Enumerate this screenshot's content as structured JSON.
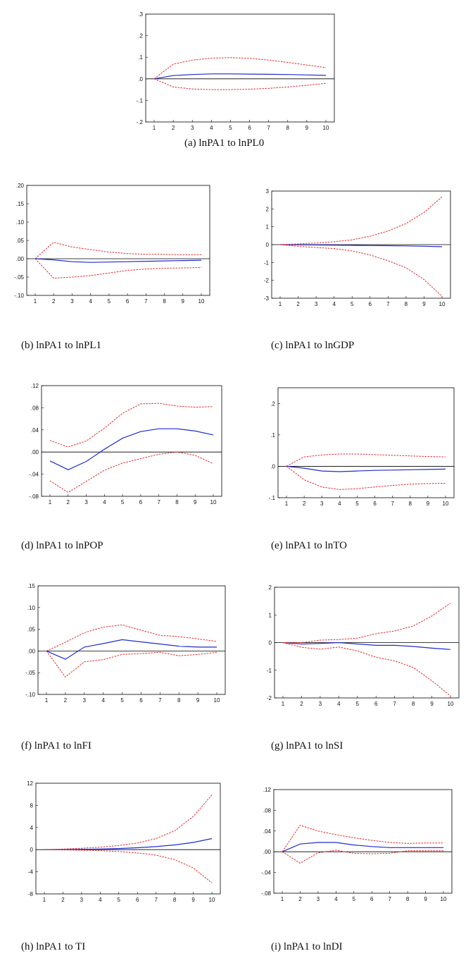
{
  "colors": {
    "response": "#1f2ccc",
    "band": "#e02a2a",
    "zero_line": "#000000",
    "frame": "#000000"
  },
  "chart_data": [
    {
      "id": "a",
      "type": "line",
      "caption": "(a) lnPA1 to lnPL0",
      "x": [
        1,
        2,
        3,
        4,
        5,
        6,
        7,
        8,
        9,
        10
      ],
      "ylim": [
        -0.2,
        0.3
      ],
      "yticks": [
        -0.2,
        -0.1,
        0.0,
        0.1,
        0.2,
        0.3
      ],
      "ytick_labels": [
        "-.2",
        "-.1",
        ".0",
        ".1",
        ".2",
        ".3"
      ],
      "series": [
        {
          "name": "response",
          "values": [
            0,
            0.015,
            0.02,
            0.023,
            0.023,
            0.022,
            0.021,
            0.02,
            0.018,
            0.016
          ]
        },
        {
          "name": "upper",
          "values": [
            0,
            0.068,
            0.087,
            0.096,
            0.098,
            0.095,
            0.087,
            0.076,
            0.064,
            0.052
          ]
        },
        {
          "name": "lower",
          "values": [
            0,
            -0.038,
            -0.047,
            -0.05,
            -0.05,
            -0.048,
            -0.044,
            -0.038,
            -0.03,
            -0.021
          ]
        }
      ]
    },
    {
      "id": "b",
      "type": "line",
      "caption": "(b) lnPA1 to lnPL1",
      "x": [
        1,
        2,
        3,
        4,
        5,
        6,
        7,
        8,
        9,
        10
      ],
      "ylim": [
        -0.1,
        0.2
      ],
      "yticks": [
        -0.1,
        -0.05,
        0.0,
        0.05,
        0.1,
        0.15,
        0.2
      ],
      "ytick_labels": [
        "-.10",
        "-.05",
        ".00",
        ".05",
        ".10",
        ".15",
        ".20"
      ],
      "series": [
        {
          "name": "response",
          "values": [
            0,
            -0.003,
            -0.008,
            -0.01,
            -0.009,
            -0.008,
            -0.007,
            -0.006,
            -0.005,
            -0.004
          ]
        },
        {
          "name": "upper",
          "values": [
            0,
            0.045,
            0.032,
            0.025,
            0.018,
            0.014,
            0.012,
            0.012,
            0.011,
            0.011
          ]
        },
        {
          "name": "lower",
          "values": [
            0,
            -0.053,
            -0.05,
            -0.046,
            -0.039,
            -0.032,
            -0.028,
            -0.026,
            -0.025,
            -0.024
          ]
        }
      ]
    },
    {
      "id": "c",
      "type": "line",
      "caption": "(c) lnPA1 to lnGDP",
      "x": [
        1,
        2,
        3,
        4,
        5,
        6,
        7,
        8,
        9,
        10
      ],
      "ylim": [
        -3,
        3
      ],
      "yticks": [
        -3,
        -2,
        -1,
        0,
        1,
        2,
        3
      ],
      "ytick_labels": [
        "-3",
        "-2",
        "-1",
        "0",
        "1",
        "2",
        "3"
      ],
      "series": [
        {
          "name": "response",
          "values": [
            0,
            -0.01,
            -0.02,
            -0.03,
            -0.04,
            -0.05,
            -0.06,
            -0.07,
            -0.09,
            -0.12
          ]
        },
        {
          "name": "upper",
          "values": [
            0,
            0.04,
            0.09,
            0.16,
            0.27,
            0.47,
            0.76,
            1.18,
            1.8,
            2.68
          ]
        },
        {
          "name": "lower",
          "values": [
            0,
            -0.1,
            -0.16,
            -0.22,
            -0.35,
            -0.58,
            -0.9,
            -1.3,
            -1.95,
            -2.9
          ]
        }
      ]
    },
    {
      "id": "d",
      "type": "line",
      "caption": "(d) lnPA1 to lnPOP",
      "x": [
        1,
        2,
        3,
        4,
        5,
        6,
        7,
        8,
        9,
        10
      ],
      "ylim": [
        -0.08,
        0.12
      ],
      "yticks": [
        -0.08,
        -0.04,
        0.0,
        0.04,
        0.08,
        0.12
      ],
      "ytick_labels": [
        "-.08",
        "-.04",
        ".00",
        ".04",
        ".08",
        ".12"
      ],
      "series": [
        {
          "name": "response",
          "values": [
            -0.016,
            -0.032,
            -0.017,
            0.005,
            0.025,
            0.037,
            0.042,
            0.042,
            0.038,
            0.031
          ]
        },
        {
          "name": "upper",
          "values": [
            0.021,
            0.009,
            0.02,
            0.043,
            0.07,
            0.087,
            0.088,
            0.083,
            0.081,
            0.082
          ]
        },
        {
          "name": "lower",
          "values": [
            -0.052,
            -0.073,
            -0.053,
            -0.033,
            -0.02,
            -0.012,
            -0.004,
            0.0,
            -0.006,
            -0.021
          ]
        }
      ]
    },
    {
      "id": "e",
      "type": "line",
      "caption": "(e) lnPA1 to lnTO",
      "x": [
        1,
        2,
        3,
        4,
        5,
        6,
        7,
        8,
        9,
        10
      ],
      "ylim": [
        -0.1,
        0.25
      ],
      "yticks": [
        -0.1,
        0.0,
        0.1,
        0.2
      ],
      "ytick_labels": [
        "-.1",
        ".0",
        ".1",
        ".2"
      ],
      "series": [
        {
          "name": "response",
          "values": [
            0,
            -0.006,
            -0.015,
            -0.017,
            -0.015,
            -0.013,
            -0.012,
            -0.011,
            -0.01,
            -0.009
          ]
        },
        {
          "name": "upper",
          "values": [
            0,
            0.03,
            0.036,
            0.039,
            0.039,
            0.037,
            0.035,
            0.033,
            0.031,
            0.03
          ]
        },
        {
          "name": "lower",
          "values": [
            0,
            -0.043,
            -0.066,
            -0.074,
            -0.071,
            -0.066,
            -0.061,
            -0.057,
            -0.055,
            -0.054
          ]
        }
      ]
    },
    {
      "id": "f",
      "type": "line",
      "caption": "(f) lnPA1 to lnFI",
      "x": [
        1,
        2,
        3,
        4,
        5,
        6,
        7,
        8,
        9,
        10
      ],
      "ylim": [
        -0.1,
        0.15
      ],
      "yticks": [
        -0.1,
        -0.05,
        0.0,
        0.05,
        0.1,
        0.15
      ],
      "ytick_labels": [
        "-.10",
        "-.05",
        ".00",
        ".05",
        ".10",
        ".15"
      ],
      "series": [
        {
          "name": "response",
          "values": [
            0,
            -0.019,
            0.009,
            0.017,
            0.026,
            0.021,
            0.016,
            0.011,
            0.009,
            0.009
          ]
        },
        {
          "name": "upper",
          "values": [
            0,
            0.02,
            0.042,
            0.055,
            0.06,
            0.048,
            0.036,
            0.033,
            0.028,
            0.022
          ]
        },
        {
          "name": "lower",
          "values": [
            0,
            -0.06,
            -0.025,
            -0.02,
            -0.008,
            -0.006,
            -0.003,
            -0.011,
            -0.008,
            -0.003
          ]
        }
      ]
    },
    {
      "id": "g",
      "type": "line",
      "caption": "(g) lnPA1 to lnSI",
      "x": [
        1,
        2,
        3,
        4,
        5,
        6,
        7,
        8,
        9,
        10
      ],
      "ylim": [
        -2,
        2
      ],
      "yticks": [
        -2,
        -1,
        0,
        1,
        2
      ],
      "ytick_labels": [
        "-2",
        "-1",
        "0",
        "1",
        "2"
      ],
      "series": [
        {
          "name": "response",
          "values": [
            0,
            -0.05,
            -0.03,
            0.0,
            -0.05,
            -0.1,
            -0.1,
            -0.14,
            -0.2,
            -0.25
          ]
        },
        {
          "name": "upper",
          "values": [
            0,
            0.0,
            0.09,
            0.11,
            0.16,
            0.32,
            0.42,
            0.6,
            0.96,
            1.43
          ]
        },
        {
          "name": "lower",
          "values": [
            0,
            -0.17,
            -0.24,
            -0.16,
            -0.3,
            -0.53,
            -0.66,
            -0.9,
            -1.38,
            -1.93
          ]
        }
      ]
    },
    {
      "id": "h",
      "type": "line",
      "caption": "(h) lnPA1 to TI",
      "x": [
        1,
        2,
        3,
        4,
        5,
        6,
        7,
        8,
        9,
        10
      ],
      "ylim": [
        -8,
        12
      ],
      "yticks": [
        -8,
        -4,
        0,
        4,
        8,
        12
      ],
      "ytick_labels": [
        "-8",
        "-4",
        "0",
        "4",
        "8",
        "12"
      ],
      "series": [
        {
          "name": "response",
          "values": [
            0,
            0.02,
            0.06,
            0.1,
            0.2,
            0.35,
            0.55,
            0.85,
            1.3,
            2.0
          ]
        },
        {
          "name": "upper",
          "values": [
            0,
            0.1,
            0.25,
            0.45,
            0.75,
            1.2,
            2.0,
            3.4,
            6.0,
            9.9
          ]
        },
        {
          "name": "lower",
          "values": [
            0,
            -0.05,
            -0.1,
            -0.18,
            -0.35,
            -0.6,
            -1.0,
            -1.8,
            -3.3,
            -6.0
          ]
        }
      ]
    },
    {
      "id": "i",
      "type": "line",
      "caption": "(i) lnPA1 to lnDI",
      "x": [
        1,
        2,
        3,
        4,
        5,
        6,
        7,
        8,
        9,
        10
      ],
      "ylim": [
        -0.08,
        0.12
      ],
      "yticks": [
        -0.08,
        -0.04,
        0.0,
        0.04,
        0.08,
        0.12
      ],
      "ytick_labels": [
        "-.08",
        "-.04",
        ".00",
        ".04",
        ".08",
        ".12"
      ],
      "series": [
        {
          "name": "response",
          "values": [
            0,
            0.015,
            0.018,
            0.018,
            0.013,
            0.01,
            0.008,
            0.008,
            0.008,
            0.008
          ]
        },
        {
          "name": "upper",
          "values": [
            0,
            0.051,
            0.04,
            0.033,
            0.027,
            0.022,
            0.018,
            0.016,
            0.017,
            0.017
          ]
        },
        {
          "name": "lower",
          "values": [
            0,
            -0.022,
            -0.002,
            0.003,
            -0.003,
            -0.004,
            -0.003,
            0.002,
            0.002,
            0.002
          ]
        }
      ]
    }
  ]
}
